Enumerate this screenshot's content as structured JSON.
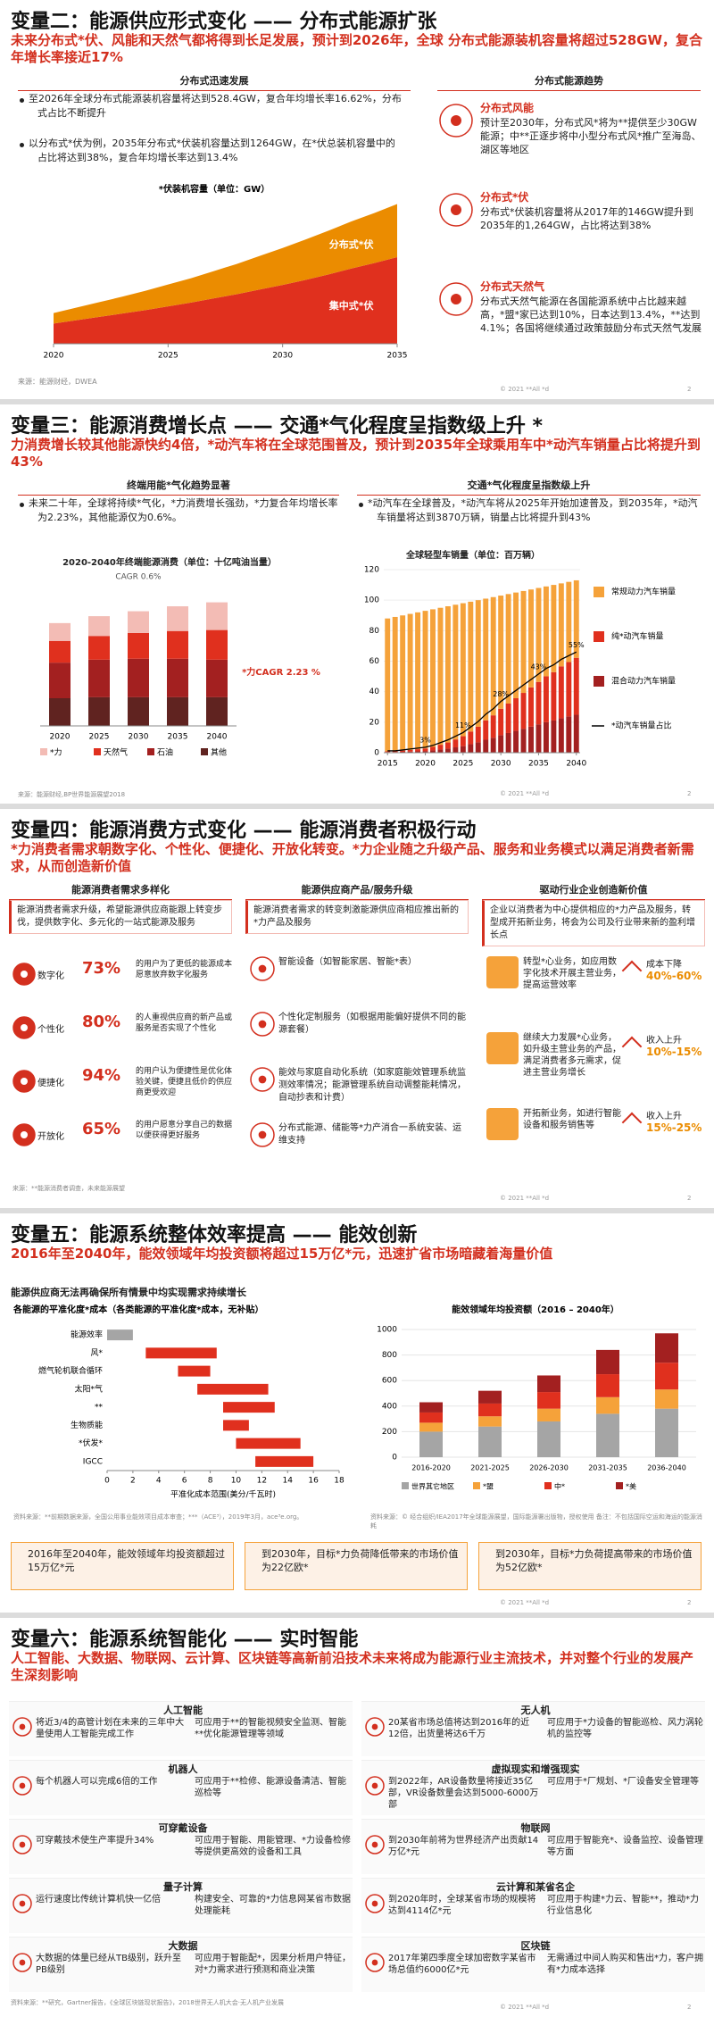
{
  "slides": [
    {
      "title": "变量二：能源供应形式变化 —— 分布式能源扩张",
      "subtitle": "未来分布式*伏、风能和天然气都将得到长足发展，预计到2026年，全球 分布式能源装机容量将超过528GW，复合年增长率接近17%",
      "left_heading": "分布式迅速发展",
      "bullets": [
        "至2026年全球分布式能源装机容量将达到528.4GW，复合年均增长率16.62%，分布式占比不断提升",
        "以分布式*伏为例，2035年分布式*伏装机容量达到1264GW，在*伏总装机容量中的占比将达到38%，复合年均增长率达到13.4%"
      ],
      "chart": {
        "type": "area",
        "title": "*伏装机容量（单位：GW）",
        "x": [
          2020,
          2021,
          2022,
          2023,
          2024,
          2025,
          2026,
          2027,
          2028,
          2029,
          2030,
          2031,
          2032,
          2033,
          2034,
          2035
        ],
        "series": [
          {
            "name": "分布式*伏",
            "color": "#eb8c00",
            "values": [
              250,
              300,
              350,
              400,
              460,
              520,
              580,
              650,
              720,
              800,
              880,
              960,
              1040,
              1120,
              1190,
              1264
            ]
          },
          {
            "name": "集中式*伏",
            "color": "#e0301e",
            "values": [
              480,
              560,
              640,
              720,
              800,
              890,
              980,
              1080,
              1180,
              1290,
              1400,
              1520,
              1650,
              1790,
              1920,
              2062
            ]
          }
        ],
        "xlim": [
          2020,
          2035
        ],
        "xticks": [
          2020,
          2025,
          2030,
          2035
        ],
        "ylim": [
          0,
          3400
        ]
      },
      "source": "来源：能源财经，DWEA",
      "right_heading": "分布式能源趋势",
      "trends": [
        {
          "title": "分布式风能",
          "text": "预计至2030年，分布式风*将为**提供至少30GW能源；中**正逐步将中小型分布式风*推广至海岛、湖区等地区"
        },
        {
          "title": "分布式*伏",
          "text": "分布式*伏装机容量将从2017年的146GW提升到2035年的1,264GW，占比将达到38%"
        },
        {
          "title": "分布式天然气",
          "text": "分布式天然气能源在各国能源系统中占比越来越高，*盟*家已达到10%，日本达到13.4%，**达到4.1%；各国将继续通过政策鼓励分布式天然气发展"
        }
      ],
      "footer": "© 2021 **All *d",
      "page": "2"
    },
    {
      "title": "变量三：能源消费增长点 —— 交通*气化程度呈指数级上升 *",
      "subtitle": "力消费增长较其他能源快约4倍，*动汽车将在全球范围普及，预计到2035年全球乘用车中*动汽车销量占比将提升到43%",
      "left_heading": "终端用能*气化趋势显著",
      "left_bullet": "未来二十年，全球将持续*气化，*力消费增长强劲，*力复合年均增长率为2.23%，其他能源仅为0.6%。",
      "chart_left": {
        "type": "stacked-bar",
        "title": "2020-2040年终端能源消费（单位：十亿吨油当量）",
        "categories": [
          "2020",
          "2025",
          "2030",
          "2035",
          "2040"
        ],
        "series": [
          {
            "name": "*力",
            "color": "#f3bcb5",
            "values": [
              1.8,
              2.0,
              2.2,
              2.5,
              2.8
            ]
          },
          {
            "name": "天然气",
            "color": "#e0301e",
            "values": [
              2.2,
              2.4,
              2.6,
              2.8,
              3.0
            ]
          },
          {
            "name": "石油",
            "color": "#a32020",
            "values": [
              3.6,
              3.8,
              3.9,
              3.9,
              3.8
            ]
          },
          {
            "name": "其他",
            "color": "#602320",
            "values": [
              2.8,
              2.9,
              2.9,
              2.9,
              2.9
            ]
          }
        ],
        "ylim": [
          0,
          14
        ],
        "annotations": [
          "CAGR 0.6%",
          "*力CAGR 2.23 %"
        ]
      },
      "right_heading": "交通*气化程度呈指数级上升",
      "right_bullet": "*动汽车在全球普及，*动汽车将从2025年开始加速普及，到2035年，*动汽车销量将达到3870万辆，销量占比将提升到43%",
      "chart_right": {
        "type": "stacked-bar-line",
        "title": "全球轻型车销量（单位：百万辆）",
        "x": [
          2015,
          2016,
          2017,
          2018,
          2019,
          2020,
          2021,
          2022,
          2023,
          2024,
          2025,
          2026,
          2027,
          2028,
          2029,
          2030,
          2031,
          2032,
          2033,
          2034,
          2035,
          2036,
          2037,
          2038,
          2039,
          2040
        ],
        "series": [
          {
            "name": "常规动力汽车销量",
            "color": "#f5a23a",
            "values": [
              87.1,
              88.1,
              88.6,
              89.2,
              89.7,
              90.2,
              90.2,
              89.8,
              89.3,
              88.3,
              87.2,
              85.1,
              83,
              79.8,
              77.5,
              74.2,
              71.8,
              69.3,
              66.8,
              64.2,
              61.6,
              58.9,
              57.2,
              54.4,
              52.6,
              50.8
            ]
          },
          {
            "name": "纯*动汽车销量",
            "color": "#e0301e",
            "values": [
              0.5,
              0.5,
              0.8,
              1.1,
              1.4,
              1.7,
              2.3,
              3.1,
              4.0,
              5.2,
              6.5,
              8.3,
              10.2,
              12.7,
              14.7,
              17.3,
              19.3,
              21.4,
              23.5,
              25.7,
              27.8,
              30.1,
              31.7,
              34,
              35.6,
              37.3
            ]
          },
          {
            "name": "混合动力汽车销量",
            "color": "#a32020",
            "values": [
              0.4,
              0.4,
              0.6,
              0.7,
              0.9,
              1.1,
              1.5,
              2.1,
              2.7,
              3.5,
              4.3,
              5.6,
              6.8,
              8.5,
              9.8,
              11.5,
              12.9,
              14.3,
              15.7,
              17.1,
              18.6,
              20,
              21.1,
              22.6,
              23.8,
              24.9
            ]
          },
          {
            "name": "*动汽车销量占比",
            "color": "#000000",
            "axis": "y2",
            "values": [
              1,
              1,
              1.5,
              2,
              2.5,
              3,
              4,
              5.5,
              7,
              9,
              11,
              14,
              17,
              21,
              24,
              28,
              31,
              34,
              37,
              40,
              43,
              46,
              48,
              51,
              53,
              55
            ],
            "value_labels": [
              null,
              null,
              null,
              null,
              null,
              "3%",
              null,
              null,
              null,
              null,
              "11%",
              null,
              null,
              null,
              null,
              "28%",
              null,
              null,
              null,
              null,
              "43%",
              null,
              null,
              null,
              null,
              "55%"
            ]
          }
        ],
        "xlim": [
          2014.5,
          2040.5
        ],
        "xticks": [
          2015,
          2020,
          2025,
          2030,
          2035,
          2040
        ],
        "ylim": [
          0,
          120
        ],
        "yticks": [
          0,
          20,
          40,
          60,
          80,
          100,
          120
        ],
        "y2lim": [
          0,
          100
        ]
      },
      "source": "来源：能源财经,BP世界能源展望2018",
      "footer": "© 2021 **All *d",
      "page": "2"
    },
    {
      "title": "变量四：能源消费方式变化 —— 能源消费者积极行动",
      "subtitle": "*力消费者需求朝数字化、个性化、便捷化、开放化转变。*力企业随之升级产品、服务和业务模式以满足消费者新需求，从而创造新价值",
      "col1": {
        "heading": "能源消费者需求多样化",
        "intro": "能源消费者需求升级，希望能源供应商能跟上转变步伐，提供数字化、多元化的一站式能源及服务",
        "items": [
          {
            "label": "数字化",
            "pct": "73%",
            "text": "的用户为了更低的能源成本愿意放弃数字化服务"
          },
          {
            "label": "个性化",
            "pct": "80%",
            "text": "的人重视供应商的新产品或服务是否实现了个性化"
          },
          {
            "label": "便捷化",
            "pct": "94%",
            "text": "的用户认为便捷性是优化体验关键，便捷且低价的供应商更受欢迎"
          },
          {
            "label": "开放化",
            "pct": "65%",
            "text": "的用户愿意分享自己的数据以便获得更好服务"
          }
        ],
        "source": "来源：**能源消费者调查，未来能源展望"
      },
      "col2": {
        "heading": "能源供应商产品/服务升级",
        "intro": "能源消费者需求的转变刺激能源供应商相应推出新的*力产品及服务",
        "items": [
          "智能设备（如智能家居、智能*表）",
          "个性化定制服务（如根据用能偏好提供不同的能源套餐）",
          "能效与家庭自动化系统（如家庭能效管理系统监测效率情况；能源管理系统自动调整能耗情况，自动抄表和计费）",
          "分布式能源、储能等*力产消合一系统安装、运维支持"
        ]
      },
      "col3": {
        "heading": "驱动行业企业创造新价值",
        "intro": "企业以消费者为中心提供相应的*力产品及服务，转型成开拓新业务，将会为公司及行业带来新的盈利增长点",
        "items": [
          {
            "text": "转型*心业务，如应用数字化技术开展主营业务，提高运营效率",
            "metric": "成本下降",
            "value": "40%-60%"
          },
          {
            "text": "继续大力发展*心业务，如升级主营业务的产品，满足消费者多元需求，促进主营业务增长",
            "metric": "收入上升",
            "value": "10%-15%"
          },
          {
            "text": "开拓新业务，如进行智能设备和服务销售等",
            "metric": "收入上升",
            "value": "15%-25%"
          }
        ]
      },
      "footer": "© 2021 **All *d",
      "page": "2"
    },
    {
      "title": "变量五：能源系统整体效率提高 —— 能效创新",
      "subtitle": "2016年至2040年，能效领域年均投资额将超过15万亿*元，迅速扩省市场暗藏着海量价值",
      "heading": "能源供应商无法再确保所有情景中均实现需求持续增长",
      "chart_left": {
        "type": "range-bar",
        "title": "各能源的平准化度*成本（各类能源的平准化度*成本，无补贴）",
        "categories": [
          "能源效率",
          "风*",
          "燃气轮机联合循环",
          "太阳*气",
          "**",
          "生物质能",
          "*伏发*",
          "IGCC"
        ],
        "low": [
          0,
          3,
          5.5,
          7,
          9,
          9,
          10,
          11.5
        ],
        "high": [
          2,
          8.5,
          8,
          12.5,
          13,
          11,
          15,
          16
        ],
        "colors": [
          "#a5a5a5",
          "#e0301e",
          "#e0301e",
          "#e0301e",
          "#e0301e",
          "#e0301e",
          "#e0301e",
          "#e0301e"
        ],
        "xlim": [
          0,
          18
        ],
        "xticks": [
          0,
          2,
          4,
          6,
          8,
          10,
          12,
          14,
          16,
          18
        ],
        "xlabel": "平准化成本范围(美分/千瓦时)"
      },
      "source_left": "资料来源：**前期数据来源，全国公用事业能效项目成本审查；***（ACE³），2019年3月，ace³e.org。",
      "chart_right": {
        "type": "stacked-bar",
        "title": "能效领域年均投资额（2016 – 2040年）",
        "categories": [
          "2016-2020",
          "2021-2025",
          "2026-2030",
          "2031-2035",
          "2036-2040"
        ],
        "series": [
          {
            "name": "世界其它地区",
            "color": "#a5a5a5",
            "values": [
              200,
              240,
              280,
              340,
              380
            ]
          },
          {
            "name": "*盟",
            "color": "#f5a23a",
            "values": [
              70,
              80,
              100,
              130,
              150
            ]
          },
          {
            "name": "中*",
            "color": "#e0301e",
            "values": [
              80,
              100,
              130,
              180,
              210
            ]
          },
          {
            "name": "*美",
            "color": "#a32020",
            "values": [
              80,
              100,
              130,
              190,
              230
            ]
          }
        ],
        "ylim": [
          0,
          1000
        ],
        "yticks": [
          0,
          200,
          400,
          600,
          800,
          1000
        ]
      },
      "source_right": "资料来源：© 经合组织/IEA2017年全球能源展望，国际能源署出版物，授权使用 备注：不包括国际空运和海运的能源消耗",
      "boxes": [
        "2016年至2040年，能效领域年均投资额超过15万亿*元",
        "到2030年，目标*力负荷降低带来的市场价值为22亿欧*",
        "到2030年，目标*力负荷提高带来的市场价值为52亿欧*"
      ],
      "footer": "© 2021 **All *d",
      "page": "2"
    },
    {
      "title": "变量六：能源系统智能化 —— 实时智能",
      "subtitle": "人工智能、大数据、物联网、云计算、区块链等高新前沿技术未来将成为能源行业主流技术，并对整个行业的发展产生深刻影响",
      "items": [
        {
          "name": "人工智能",
          "fact": "将近3/4的高管计划在未来的三年中大量使用人工智能完成工作",
          "use": "可应用于**的智能视频安全监测、智能**优化能源管理等领域"
        },
        {
          "name": "机器人",
          "fact": "每个机器人可以完成6倍的工作",
          "use": "可应用于**检修、能源设备清洁、智能巡检等"
        },
        {
          "name": "可穿戴设备",
          "fact": "可穿戴技术使生产率提升34%",
          "use": "可应用于智能、用能管理、*力设备检修等提供更高效的设备和工具"
        },
        {
          "name": "量子计算",
          "fact": "运行速度比传统计算机快一亿倍",
          "use": "构建安全、可靠的*力信息网某省市数据处理能耗"
        },
        {
          "name": "大数据",
          "fact": "大数据的体量已经从TB级别，跃升至PB级别",
          "use": "可应用于智能配*，因果分析用户特征，对*力需求进行预测和商业决策"
        },
        {
          "name": "无人机",
          "fact": "20某省市场总值将达到2016年的近12倍，出货量将达6千万",
          "use": "可应用于*力设备的智能巡检、风力涡轮机的监控等"
        },
        {
          "name": "虚拟现实和增强现实",
          "fact": "到2022年，AR设备数量将接近35亿部，VR设备数量会达到5000-6000万部",
          "use": "可应用于*厂规划、*厂设备安全管理等"
        },
        {
          "name": "物联网",
          "fact": "到2030年前将为世界经济产出贡献14万亿*元",
          "use": "可应用于智能充*、设备监控、设备管理等方面"
        },
        {
          "name": "云计算和某省名企",
          "fact": "到2020年时，全球某省市场的规模将达到4114亿*元",
          "use": "可应用于构建*力云、智能**，推动*力行业信息化"
        },
        {
          "name": "区块链",
          "fact": "2017年第四季度全球加密数字某省市场总值约6000亿*元",
          "use": "无需通过中间人购买和售出*力，客户拥有*力成本选择"
        }
      ],
      "source": "资料来源：**研究，Gartner报告，《全球区块链现状报告》，2018世界无人机大会·无人机产业发展",
      "footer": "© 2021 **All *d",
      "page": "2"
    }
  ]
}
